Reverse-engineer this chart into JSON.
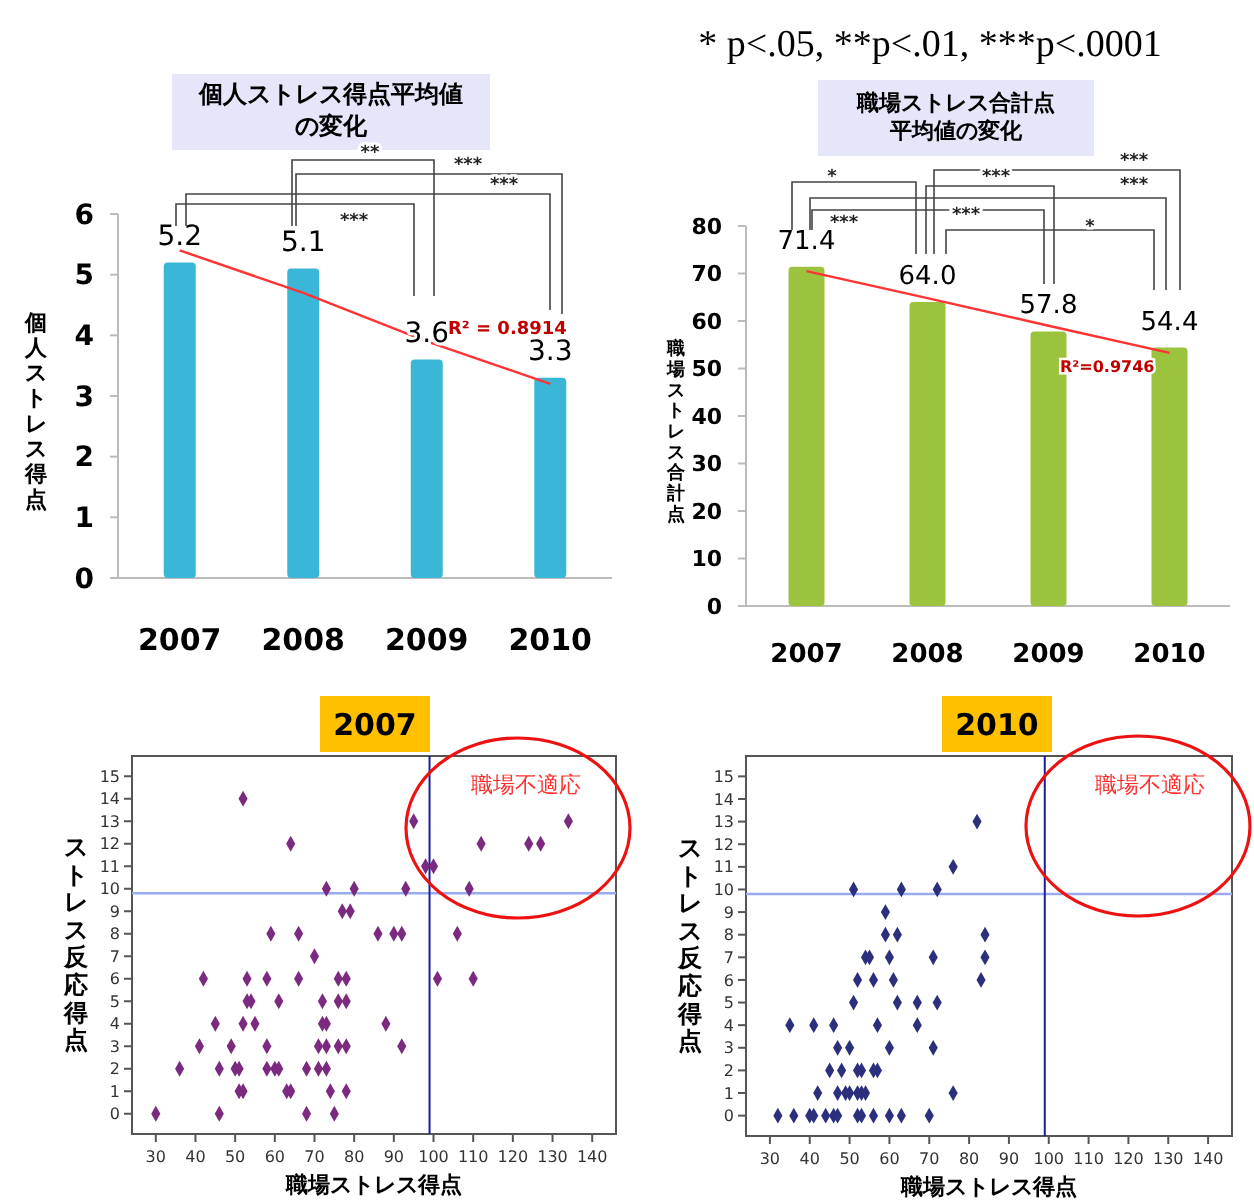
{
  "chart_data": [
    {
      "type": "bar",
      "title": "個人ストレス得点平均値の変化",
      "ylabel": "個人ストレス得点",
      "categories": [
        "2007",
        "2008",
        "2009",
        "2010"
      ],
      "series": [
        {
          "type": "bar",
          "values": [
            5.2,
            5.1,
            3.6,
            3.3
          ],
          "value_labels": [
            "5.2",
            "5.1",
            "3.6",
            "3.3"
          ],
          "color": "#3ab7d6"
        },
        {
          "type": "line",
          "values": [
            5.4,
            4.7,
            3.9,
            3.2
          ],
          "color": "#ff3333"
        }
      ],
      "ylim": [
        0,
        6
      ],
      "yticks": [
        0,
        1,
        2,
        3,
        4,
        5,
        6
      ],
      "grid": false,
      "annotations": [
        "**",
        "***",
        "***",
        "***",
        "R² = 0.8914"
      ]
    },
    {
      "type": "bar",
      "title": "職場ストレス合計点平均値の変化",
      "ylabel": "職場ストレス合計点",
      "categories": [
        "2007",
        "2008",
        "2009",
        "2010"
      ],
      "series": [
        {
          "type": "bar",
          "values": [
            71.4,
            64.0,
            57.8,
            54.4
          ],
          "value_labels": [
            "71.4",
            "64.0",
            "57.8",
            "54.4"
          ],
          "color": "#9cc33e"
        },
        {
          "type": "line",
          "values": [
            70.5,
            64.8,
            59.0,
            53.3
          ],
          "color": "#ff3333"
        }
      ],
      "ylim": [
        0,
        80
      ],
      "yticks": [
        0,
        10,
        20,
        30,
        40,
        50,
        60,
        70,
        80
      ],
      "grid": false,
      "annotations": [
        "* p<.05, **p<.01, ***p<.0001",
        "*",
        "***",
        "***",
        "***",
        "***",
        "***",
        "*",
        "R²=0.9746"
      ]
    },
    {
      "type": "scatter",
      "title": "2007",
      "xlabel": "職場ストレス得点",
      "ylabel": "ストレス反応得点",
      "marker": "diamond",
      "color": "#7b2a80",
      "x": [
        52,
        95,
        134,
        64,
        112,
        124,
        127,
        98,
        100,
        73,
        80,
        93,
        109,
        77,
        79,
        59,
        66,
        86,
        90,
        92,
        106,
        70,
        42,
        53,
        58,
        66,
        76,
        78,
        101,
        110,
        53,
        54,
        61,
        72,
        76,
        78,
        45,
        52,
        55,
        72,
        73,
        88,
        41,
        49,
        58,
        71,
        73,
        76,
        78,
        92,
        36,
        46,
        50,
        51,
        58,
        60,
        61,
        68,
        71,
        73,
        51,
        52,
        63,
        64,
        74,
        78,
        30,
        46,
        68,
        75
      ],
      "values": [
        14,
        13,
        13,
        12,
        12,
        12,
        12,
        11,
        11,
        10,
        10,
        10,
        10,
        9,
        9,
        8,
        8,
        8,
        8,
        8,
        8,
        7,
        6,
        6,
        6,
        6,
        6,
        6,
        6,
        6,
        5,
        5,
        5,
        5,
        5,
        5,
        4,
        4,
        4,
        4,
        4,
        4,
        3,
        3,
        3,
        3,
        3,
        3,
        3,
        3,
        2,
        2,
        2,
        2,
        2,
        2,
        2,
        2,
        2,
        2,
        1,
        1,
        1,
        1,
        1,
        1,
        0,
        0,
        0,
        0
      ],
      "xlim": [
        24,
        146
      ],
      "xticks": [
        30,
        40,
        50,
        60,
        70,
        80,
        90,
        100,
        110,
        120,
        130,
        140
      ],
      "ylim": [
        -0.9,
        15.9
      ],
      "yticks": [
        0,
        1,
        2,
        3,
        4,
        5,
        6,
        7,
        8,
        9,
        10,
        11,
        12,
        13,
        14,
        15
      ],
      "grid": false,
      "ref_lines": [
        {
          "axis": "y",
          "value": 9.8,
          "color": "#9aaaf0"
        },
        {
          "axis": "x",
          "value": 99,
          "color": "#1c1ca0"
        }
      ],
      "annotations": [
        "職場不適応"
      ]
    },
    {
      "type": "scatter",
      "title": "2010",
      "xlabel": "職場ストレス得点",
      "ylabel": "ストレス反応得点",
      "marker": "diamond",
      "color": "#2b2f7c",
      "x": [
        82,
        76,
        51,
        63,
        72,
        59,
        59,
        62,
        84,
        54,
        55,
        60,
        71,
        84,
        52,
        56,
        61,
        83,
        51,
        62,
        67,
        72,
        35,
        41,
        46,
        57,
        67,
        47,
        50,
        60,
        71,
        45,
        48,
        52,
        53,
        56,
        57,
        42,
        47,
        49,
        50,
        52,
        53,
        54,
        76,
        32,
        36,
        40,
        41,
        44,
        46,
        47,
        52,
        53,
        56,
        60,
        63,
        70
      ],
      "values": [
        13,
        11,
        10,
        10,
        10,
        9,
        8,
        8,
        8,
        7,
        7,
        7,
        7,
        7,
        6,
        6,
        6,
        6,
        5,
        5,
        5,
        5,
        4,
        4,
        4,
        4,
        4,
        3,
        3,
        3,
        3,
        2,
        2,
        2,
        2,
        2,
        2,
        1,
        1,
        1,
        1,
        1,
        1,
        1,
        1,
        0,
        0,
        0,
        0,
        0,
        0,
        0,
        0,
        0,
        0,
        0,
        0,
        0
      ],
      "xlim": [
        24,
        146
      ],
      "xticks": [
        30,
        40,
        50,
        60,
        70,
        80,
        90,
        100,
        110,
        120,
        130,
        140
      ],
      "ylim": [
        -0.9,
        15.9
      ],
      "yticks": [
        0,
        1,
        2,
        3,
        4,
        5,
        6,
        7,
        8,
        9,
        10,
        11,
        12,
        13,
        14,
        15
      ],
      "grid": false,
      "ref_lines": [
        {
          "axis": "y",
          "value": 9.8,
          "color": "#9aaaf0"
        },
        {
          "axis": "x",
          "value": 99,
          "color": "#1c1ca0"
        }
      ],
      "annotations": [
        "職場不適応"
      ]
    }
  ]
}
